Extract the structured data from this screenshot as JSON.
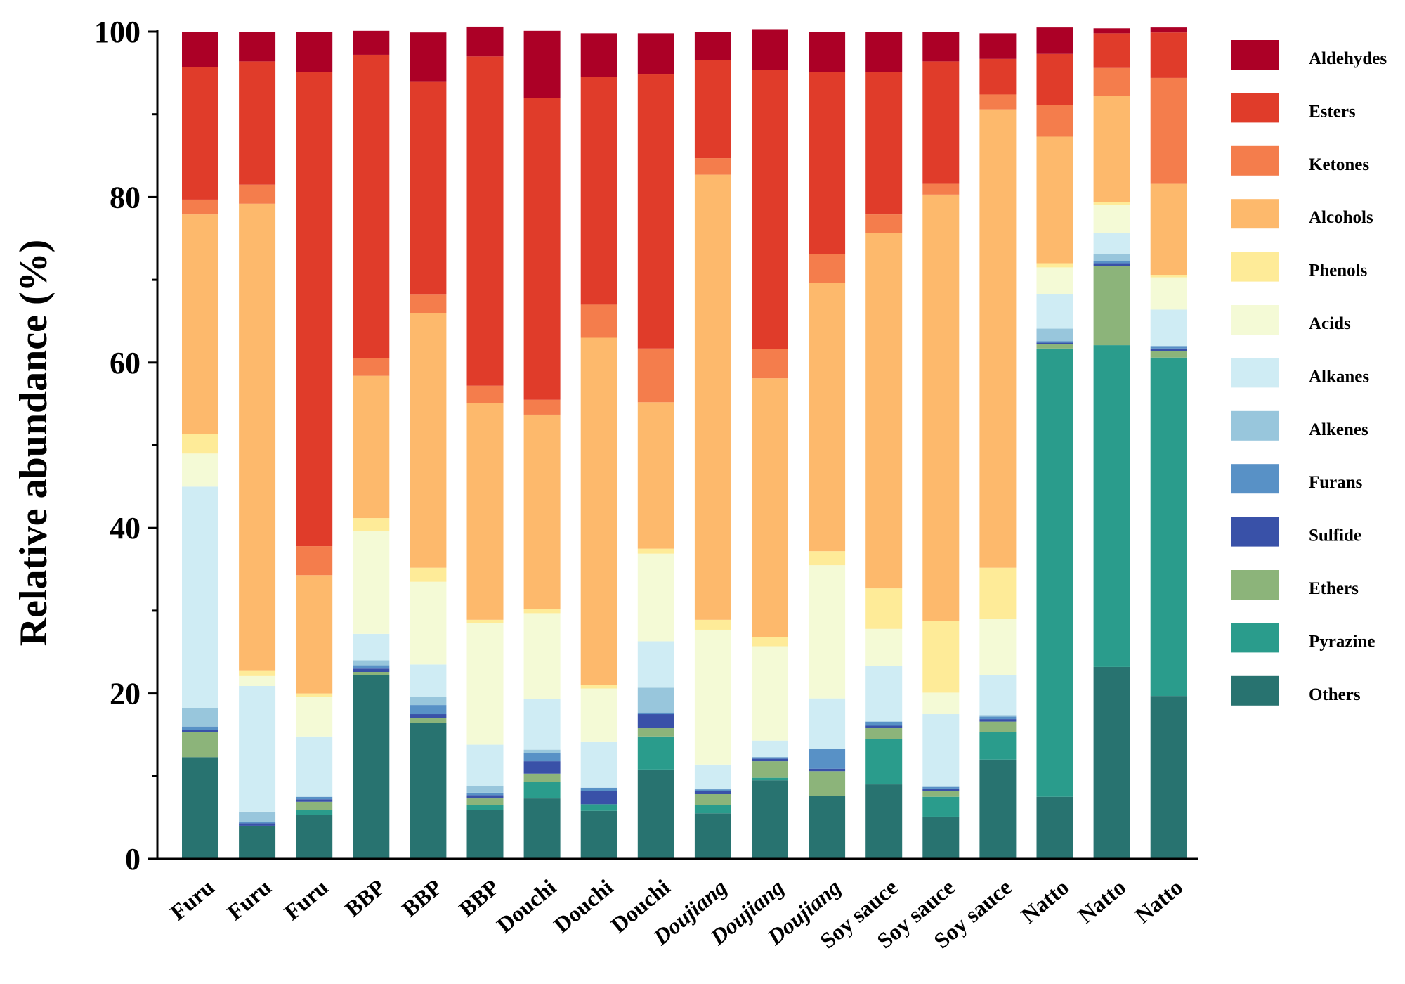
{
  "chart_data": {
    "type": "bar",
    "stacked": true,
    "title": "",
    "xlabel": "",
    "ylabel": "Relative abundance (%)",
    "ylim": [
      0,
      100
    ],
    "yticks": [
      0,
      20,
      40,
      60,
      80,
      100
    ],
    "legend_position": "right",
    "categories": [
      "Furu",
      "Furu",
      "Furu",
      "BBP",
      "BBP",
      "BBP",
      "Douchi",
      "Douchi",
      "Douchi",
      "Doujiang",
      "Doujiang",
      "Doujiang",
      "Soy sauce",
      "Soy sauce",
      "Soy sauce",
      "Natto",
      "Natto",
      "Natto"
    ],
    "italic_categories": [
      "Doujiang"
    ],
    "series": [
      {
        "name": "Others",
        "color": "#287370",
        "values": [
          12.3,
          4.0,
          5.3,
          22.2,
          16.4,
          5.9,
          7.3,
          5.8,
          10.8,
          5.5,
          9.5,
          7.6,
          9.0,
          5.1,
          12.0,
          7.5,
          23.2,
          19.7
        ]
      },
      {
        "name": "Pyrazine",
        "color": "#2a9c8c",
        "values": [
          0,
          0,
          0.6,
          0,
          0,
          0.6,
          2.0,
          0.8,
          4.0,
          1.0,
          0.3,
          0,
          5.5,
          2.4,
          3.3,
          54.2,
          38.9,
          40.9
        ]
      },
      {
        "name": "Ethers",
        "color": "#8cb47a",
        "values": [
          3.0,
          0,
          1.0,
          0.4,
          0.6,
          0.8,
          1.0,
          0,
          1.0,
          1.4,
          2.0,
          3.0,
          1.3,
          0.7,
          1.3,
          0.5,
          9.6,
          0.8
        ]
      },
      {
        "name": "Sulfide",
        "color": "#3951a8",
        "values": [
          0.3,
          0.3,
          0.3,
          0.4,
          0.5,
          0.4,
          1.5,
          1.6,
          1.7,
          0.3,
          0.3,
          0.3,
          0.3,
          0.3,
          0.3,
          0.2,
          0.3,
          0.3
        ]
      },
      {
        "name": "Furans",
        "color": "#5891c6",
        "values": [
          0.4,
          0.2,
          0.3,
          0.4,
          1.1,
          0.3,
          1.0,
          0.4,
          0.2,
          0.2,
          0.2,
          2.4,
          0.5,
          0.2,
          0.3,
          0.2,
          0.3,
          0.3
        ]
      },
      {
        "name": "Alkenes",
        "color": "#98c6dc",
        "values": [
          2.2,
          1.2,
          0,
          0.6,
          1.0,
          0.8,
          0.4,
          0,
          3.0,
          0.1,
          0,
          0,
          0,
          0,
          0.2,
          1.5,
          0.8,
          0
        ]
      },
      {
        "name": "Alkanes",
        "color": "#cfecf4",
        "values": [
          26.8,
          15.2,
          7.3,
          3.2,
          3.9,
          5.0,
          6.1,
          5.6,
          5.6,
          2.9,
          2.0,
          6.1,
          6.7,
          8.8,
          4.8,
          4.2,
          2.6,
          4.4
        ]
      },
      {
        "name": "Acids",
        "color": "#f4fad6",
        "values": [
          4.0,
          1.2,
          4.8,
          12.4,
          10.0,
          14.7,
          10.4,
          6.4,
          10.6,
          16.3,
          11.4,
          16.1,
          4.5,
          2.6,
          6.8,
          3.2,
          3.4,
          3.9
        ]
      },
      {
        "name": "Phenols",
        "color": "#feeb98",
        "values": [
          2.4,
          0.7,
          0.4,
          1.6,
          1.7,
          0.4,
          0.5,
          0.4,
          0.6,
          1.2,
          1.1,
          1.7,
          4.9,
          8.7,
          6.2,
          0.5,
          0.3,
          0.3
        ]
      },
      {
        "name": "Alcohols",
        "color": "#fdb96c",
        "values": [
          26.5,
          56.4,
          14.3,
          17.2,
          30.8,
          26.2,
          23.5,
          42.0,
          17.7,
          53.8,
          31.3,
          32.4,
          43.0,
          51.5,
          55.4,
          15.3,
          12.8,
          11.0
        ]
      },
      {
        "name": "Ketones",
        "color": "#f47d4c",
        "values": [
          1.8,
          2.3,
          3.5,
          2.1,
          2.2,
          2.1,
          1.8,
          4.0,
          6.5,
          2.0,
          3.5,
          3.5,
          2.2,
          1.3,
          1.8,
          3.8,
          3.4,
          12.8
        ]
      },
      {
        "name": "Esters",
        "color": "#e03c2a",
        "values": [
          16.0,
          14.9,
          57.3,
          36.7,
          25.8,
          39.8,
          36.5,
          27.5,
          33.2,
          11.9,
          33.8,
          22.0,
          17.2,
          14.8,
          4.3,
          6.2,
          4.2,
          5.5
        ]
      },
      {
        "name": "Aldehydes",
        "color": "#ac0026",
        "values": [
          4.3,
          3.6,
          4.9,
          2.9,
          5.9,
          3.6,
          8.1,
          5.3,
          4.9,
          3.4,
          4.9,
          4.9,
          4.9,
          3.6,
          3.1,
          3.2,
          0.6,
          0.6
        ]
      }
    ],
    "legend_order": [
      "Aldehydes",
      "Esters",
      "Ketones",
      "Alcohols",
      "Phenols",
      "Acids",
      "Alkanes",
      "Alkenes",
      "Furans",
      "Sulfide",
      "Ethers",
      "Pyrazine",
      "Others"
    ]
  }
}
